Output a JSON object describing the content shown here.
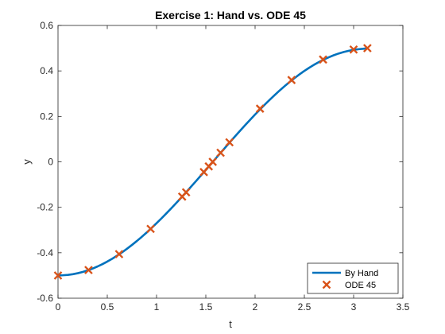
{
  "chart_data": {
    "type": "line",
    "title": "Exercise 1: Hand vs. ODE 45",
    "xlabel": "t",
    "ylabel": "y",
    "xlim": [
      0,
      3.5
    ],
    "ylim": [
      -0.6,
      0.6
    ],
    "xticks": [
      0,
      0.5,
      1,
      1.5,
      2,
      2.5,
      3,
      3.5
    ],
    "xtick_labels": [
      "0",
      "0.5",
      "1",
      "1.5",
      "2",
      "2.5",
      "3",
      "3.5"
    ],
    "yticks": [
      -0.6,
      -0.4,
      -0.2,
      0,
      0.2,
      0.4,
      0.6
    ],
    "ytick_labels": [
      "-0.6",
      "-0.4",
      "-0.2",
      "0",
      "0.2",
      "0.4",
      "0.6"
    ],
    "grid": false,
    "legend_position": "bottom-right",
    "series": [
      {
        "name": "By Hand",
        "style": "line",
        "color": "#0072BD",
        "x": [
          0,
          0.05,
          0.1,
          0.15,
          0.2,
          0.25,
          0.3,
          0.35,
          0.4,
          0.45,
          0.5,
          0.55,
          0.6,
          0.65,
          0.7,
          0.75,
          0.8,
          0.85,
          0.9,
          0.95,
          1,
          1.05,
          1.1,
          1.15,
          1.2,
          1.25,
          1.3,
          1.35,
          1.4,
          1.45,
          1.5,
          1.55,
          1.6,
          1.65,
          1.7,
          1.75,
          1.8,
          1.85,
          1.9,
          1.95,
          2,
          2.05,
          2.1,
          2.15,
          2.2,
          2.25,
          2.3,
          2.35,
          2.4,
          2.45,
          2.5,
          2.55,
          2.6,
          2.65,
          2.7,
          2.75,
          2.8,
          2.85,
          2.9,
          2.95,
          3,
          3.05,
          3.1,
          3.14
        ],
        "y": [
          -0.5,
          -0.499,
          -0.4975,
          -0.4944,
          -0.49,
          -0.4844,
          -0.4777,
          -0.4697,
          -0.4605,
          -0.4502,
          -0.4388,
          -0.4263,
          -0.4127,
          -0.3981,
          -0.3824,
          -0.3658,
          -0.3483,
          -0.33,
          -0.3108,
          -0.2908,
          -0.2702,
          -0.2488,
          -0.2268,
          -0.2043,
          -0.1812,
          -0.1577,
          -0.1338,
          -0.1095,
          -0.085,
          -0.0603,
          -0.0354,
          -0.0104,
          0.0146,
          0.0396,
          0.0644,
          0.0892,
          0.1136,
          0.1377,
          0.1616,
          0.1849,
          0.2081,
          0.2304,
          0.2523,
          0.2737,
          0.2942,
          0.3141,
          0.333,
          0.3511,
          0.3683,
          0.3846,
          0.4,
          0.4141,
          0.4275,
          0.4395,
          0.4505,
          0.4604,
          0.4692,
          0.4768,
          0.4833,
          0.4886,
          0.4927,
          0.4955,
          0.4975,
          0.5
        ]
      },
      {
        "name": "ODE 45",
        "style": "marker",
        "marker": "x",
        "color": "#D95319",
        "x": [
          0,
          0.31,
          0.62,
          0.94,
          1.26,
          1.3,
          1.48,
          1.53,
          1.57,
          1.65,
          1.74,
          2.05,
          2.37,
          2.69,
          3.0,
          3.14
        ],
        "y": [
          -0.5,
          -0.476,
          -0.406,
          -0.295,
          -0.153,
          -0.134,
          -0.045,
          -0.02,
          0.0,
          0.04,
          0.086,
          0.234,
          0.36,
          0.45,
          0.494,
          0.5
        ]
      }
    ]
  }
}
